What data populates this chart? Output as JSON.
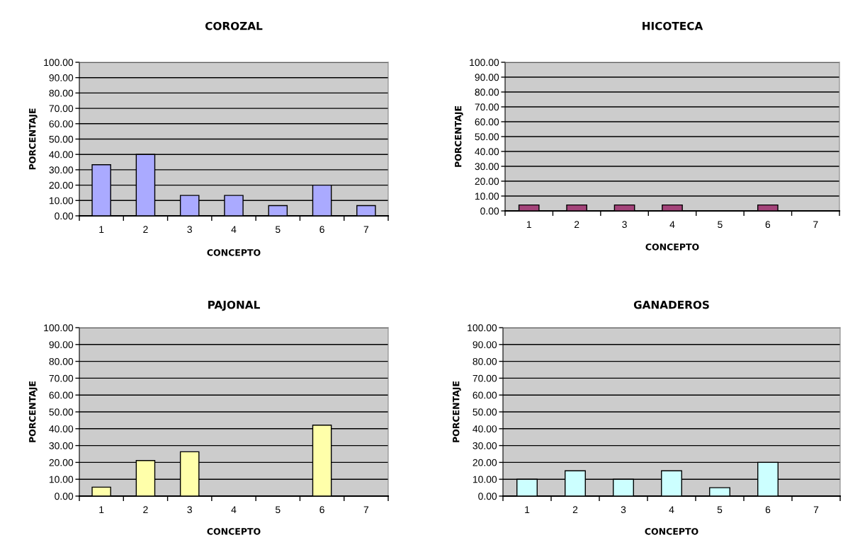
{
  "chart_data": [
    {
      "type": "bar",
      "title": "COROZAL",
      "xlabel": "CONCEPTO",
      "ylabel": "PORCENTAJE",
      "categories": [
        "1",
        "2",
        "3",
        "4",
        "5",
        "6",
        "7"
      ],
      "values": [
        33.3,
        40.0,
        13.3,
        13.3,
        6.7,
        20.0,
        6.7
      ],
      "color": "#aaaaff",
      "ylim": [
        0,
        100
      ],
      "yticks": [
        {
          "value": 0,
          "label": "0.00"
        },
        {
          "value": 10,
          "label": "10.00"
        },
        {
          "value": 20,
          "label": "20.00"
        },
        {
          "value": 30,
          "label": "30.00"
        },
        {
          "value": 40,
          "label": "40.00"
        },
        {
          "value": 50,
          "label": "50.00"
        },
        {
          "value": 60,
          "label": "60.00"
        },
        {
          "value": 70,
          "label": "70.00"
        },
        {
          "value": 80,
          "label": "80.00"
        },
        {
          "value": 90,
          "label": "90.00"
        },
        {
          "value": 100,
          "label": "100.00"
        }
      ],
      "grid": "y",
      "legend": false
    },
    {
      "type": "bar",
      "title": "HICOTECA",
      "xlabel": "CONCEPTO",
      "ylabel": "PORCENTAJE",
      "categories": [
        "1",
        "2",
        "3",
        "4",
        "5",
        "6",
        "7"
      ],
      "values": [
        4.0,
        4.0,
        4.0,
        4.0,
        0,
        4.0,
        0
      ],
      "color": "#a4447a",
      "ylim": [
        0,
        100
      ],
      "yticks": [
        {
          "value": 0,
          "label": "0.00"
        },
        {
          "value": 10,
          "label": "10.00"
        },
        {
          "value": 20,
          "label": "20.00"
        },
        {
          "value": 30,
          "label": "30.00"
        },
        {
          "value": 40,
          "label": "40.00"
        },
        {
          "value": 50,
          "label": "50.00"
        },
        {
          "value": 60,
          "label": "60.00"
        },
        {
          "value": 70,
          "label": "70.00"
        },
        {
          "value": 80,
          "label": "80.00"
        },
        {
          "value": 90,
          "label": "90.00"
        },
        {
          "value": 100,
          "label": "100.00"
        }
      ],
      "grid": "y",
      "legend": false
    },
    {
      "type": "bar",
      "title": "PAJONAL",
      "xlabel": "CONCEPTO",
      "ylabel": "PORCENTAJE",
      "categories": [
        "1",
        "2",
        "3",
        "4",
        "5",
        "6",
        "7"
      ],
      "values": [
        5.3,
        21.1,
        26.3,
        0,
        0,
        42.1,
        0
      ],
      "color": "#ffffaa",
      "ylim": [
        0,
        100
      ],
      "yticks": [
        {
          "value": 0,
          "label": "0.00"
        },
        {
          "value": 10,
          "label": "10.00"
        },
        {
          "value": 20,
          "label": "20.00"
        },
        {
          "value": 30,
          "label": "30.00"
        },
        {
          "value": 40,
          "label": "40.00"
        },
        {
          "value": 50,
          "label": "50.00"
        },
        {
          "value": 60,
          "label": "60.00"
        },
        {
          "value": 70,
          "label": "70.00"
        },
        {
          "value": 80,
          "label": "80.00"
        },
        {
          "value": 90,
          "label": "90.00"
        },
        {
          "value": 100,
          "label": "100.00"
        }
      ],
      "grid": "y",
      "legend": false
    },
    {
      "type": "bar",
      "title": "GANADEROS",
      "xlabel": "CONCEPTO",
      "ylabel": "PORCENTAJE",
      "categories": [
        "1",
        "2",
        "3",
        "4",
        "5",
        "6",
        "7"
      ],
      "values": [
        10.0,
        15.0,
        10.0,
        15.0,
        5.0,
        20.0,
        0
      ],
      "color": "#ccffff",
      "ylim": [
        0,
        100
      ],
      "yticks": [
        {
          "value": 0,
          "label": "0.00"
        },
        {
          "value": 10,
          "label": "10.00"
        },
        {
          "value": 20,
          "label": "20.00"
        },
        {
          "value": 30,
          "label": "30.00"
        },
        {
          "value": 40,
          "label": "40.00"
        },
        {
          "value": 50,
          "label": "50.00"
        },
        {
          "value": 60,
          "label": "60.00"
        },
        {
          "value": 70,
          "label": "70.00"
        },
        {
          "value": 80,
          "label": "80.00"
        },
        {
          "value": 90,
          "label": "90.00"
        },
        {
          "value": 100,
          "label": "100.00"
        }
      ],
      "grid": "y",
      "legend": false
    }
  ]
}
